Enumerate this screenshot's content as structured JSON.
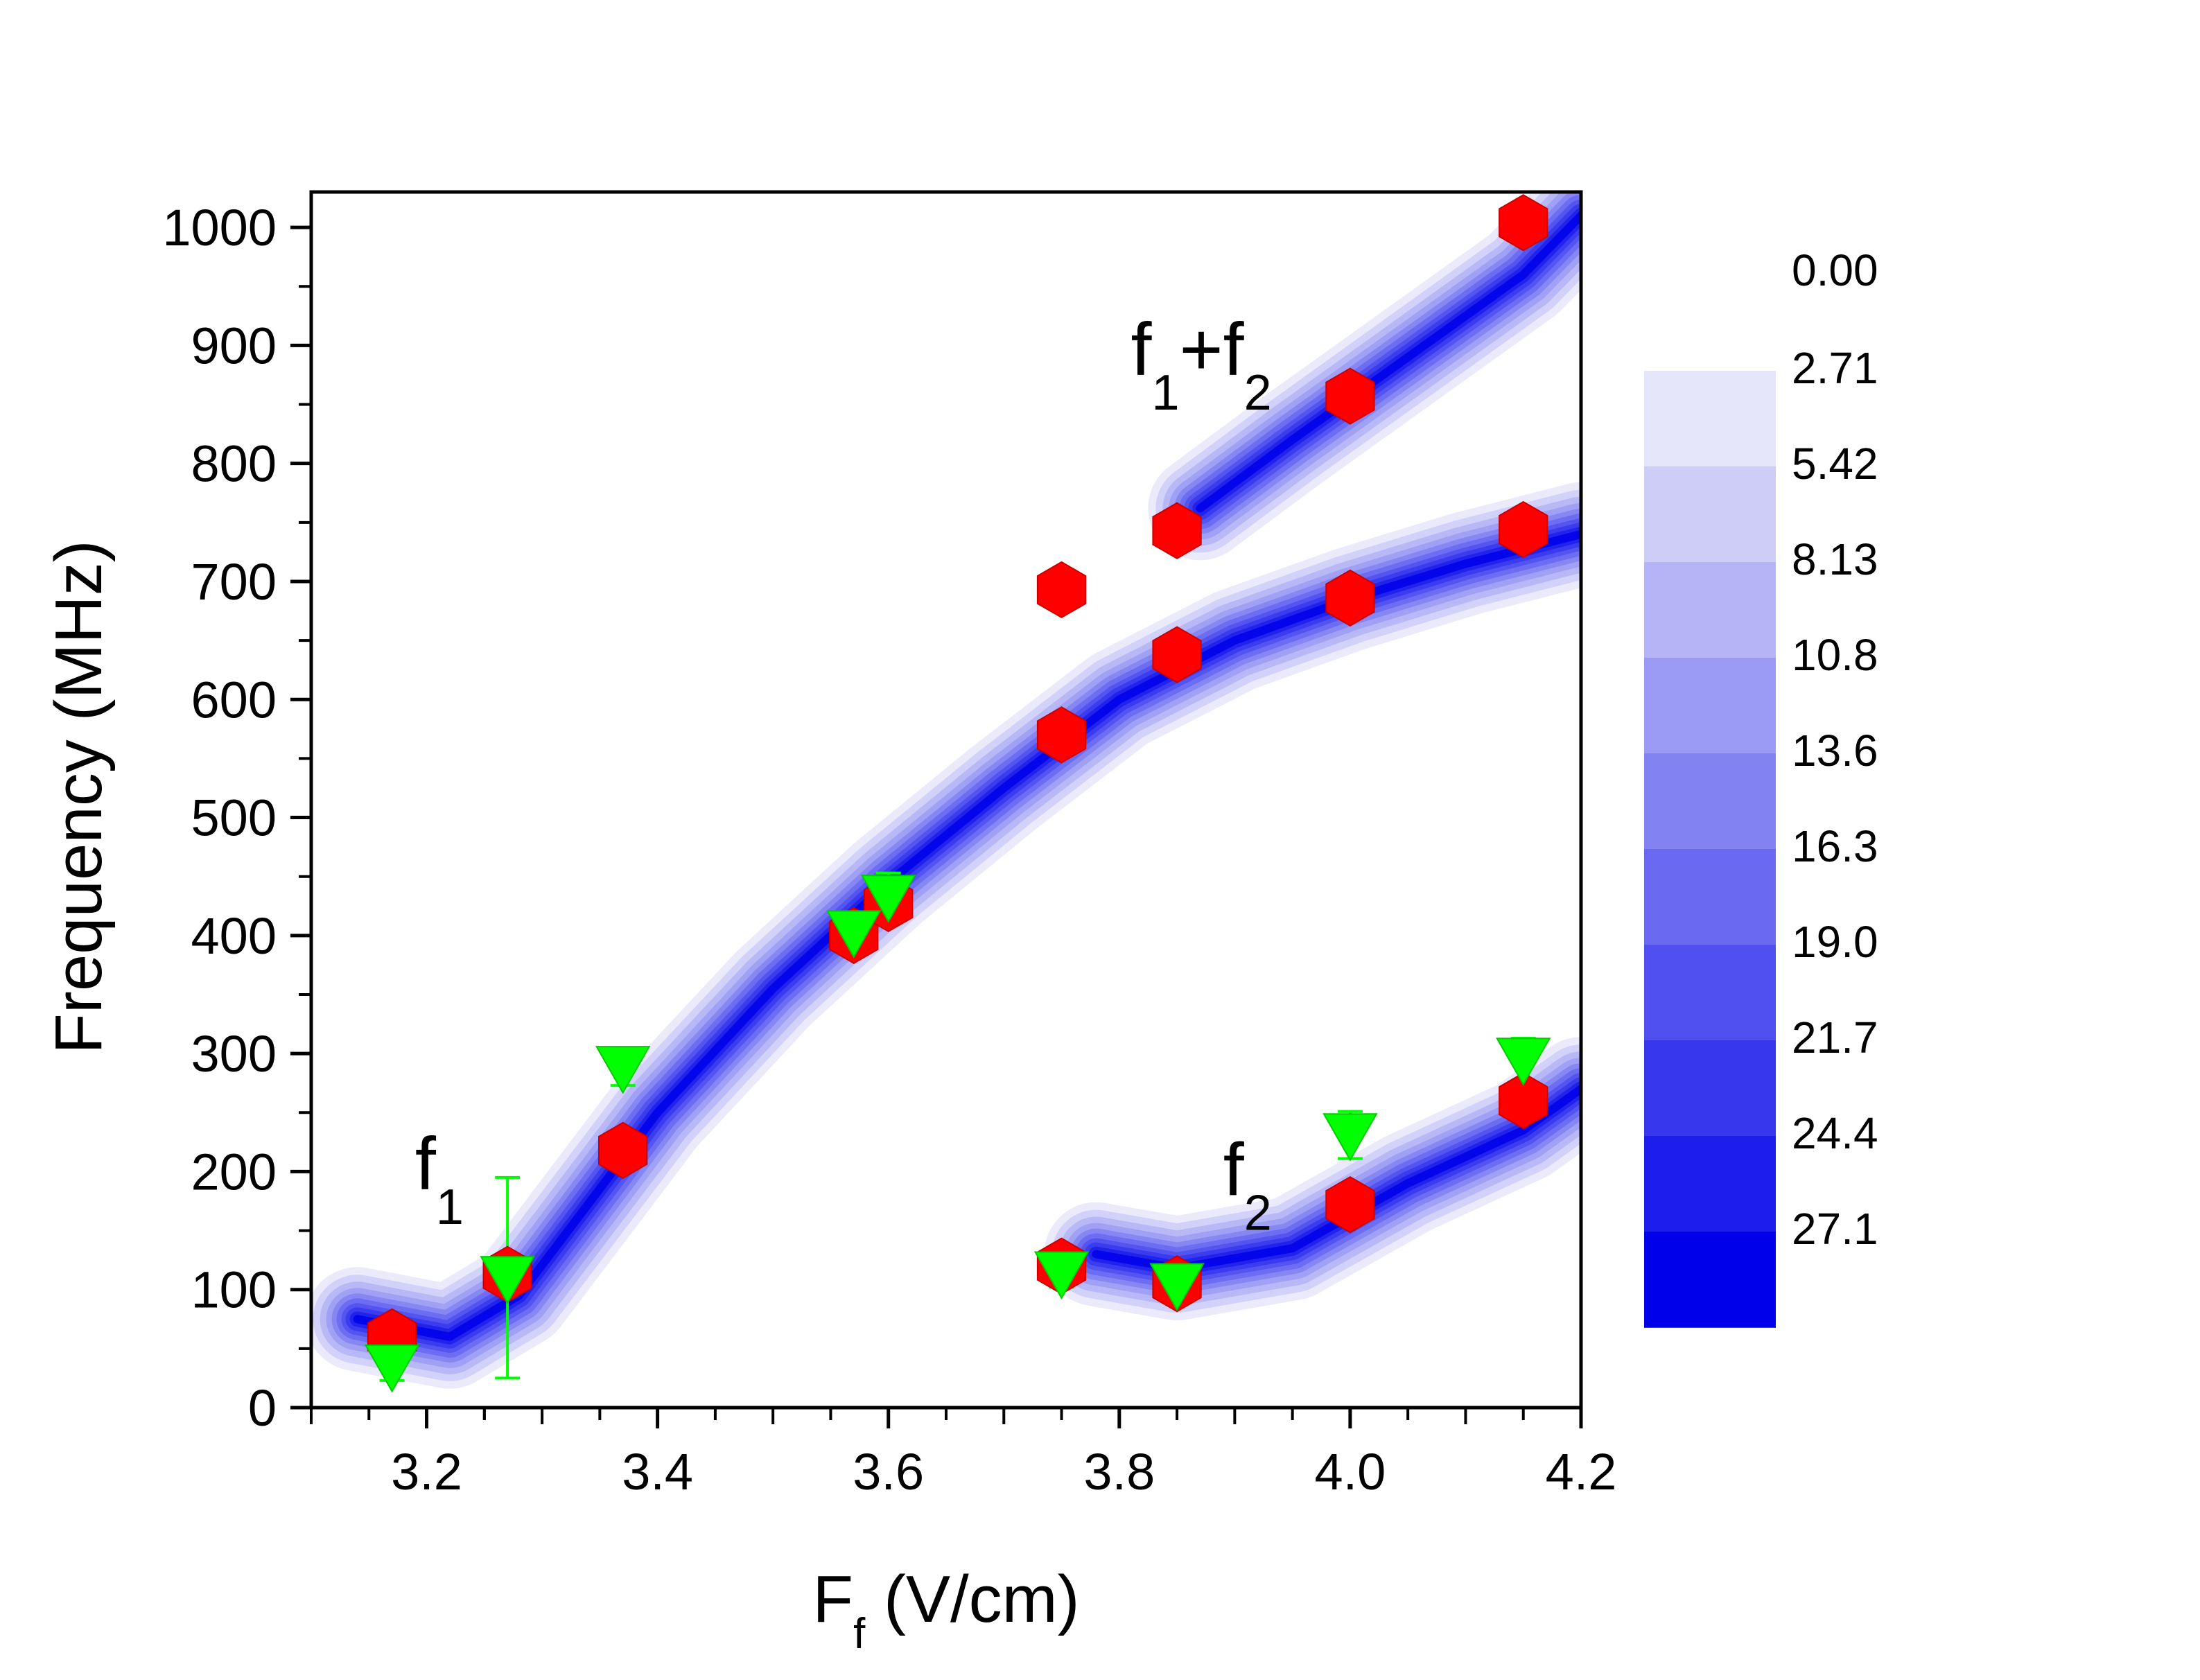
{
  "chart_data": {
    "type": "scatter",
    "title": "",
    "xlabel": "F",
    "xlabel_sub": "f",
    "xlabel_unit": " (V/cm)",
    "ylabel": "Frequency (MHz)",
    "xlim": [
      3.1,
      4.2
    ],
    "ylim": [
      0,
      1030
    ],
    "xticks": [
      3.2,
      3.4,
      3.6,
      3.8,
      4.0,
      4.2
    ],
    "xtick_labels": [
      "3.2",
      "3.4",
      "3.6",
      "3.8",
      "4.0",
      "4.2"
    ],
    "yticks": [
      0,
      100,
      200,
      300,
      400,
      500,
      600,
      700,
      800,
      900,
      1000
    ],
    "ytick_labels": [
      "0",
      "100",
      "200",
      "300",
      "400",
      "500",
      "600",
      "700",
      "800",
      "900",
      "1000"
    ],
    "grid": false,
    "series": [
      {
        "name": "red hexagons",
        "marker": "hexagon",
        "color": "#ff0000",
        "points": [
          {
            "x": 3.17,
            "y": 60
          },
          {
            "x": 3.27,
            "y": 113
          },
          {
            "x": 3.37,
            "y": 218
          },
          {
            "x": 3.57,
            "y": 400
          },
          {
            "x": 3.6,
            "y": 427
          },
          {
            "x": 3.75,
            "y": 570
          },
          {
            "x": 3.75,
            "y": 693
          },
          {
            "x": 3.75,
            "y": 120
          },
          {
            "x": 3.85,
            "y": 638
          },
          {
            "x": 3.85,
            "y": 743
          },
          {
            "x": 3.85,
            "y": 105
          },
          {
            "x": 4.0,
            "y": 686
          },
          {
            "x": 4.0,
            "y": 857
          },
          {
            "x": 4.0,
            "y": 172
          },
          {
            "x": 4.15,
            "y": 1004
          },
          {
            "x": 4.15,
            "y": 744
          },
          {
            "x": 4.15,
            "y": 260
          }
        ]
      },
      {
        "name": "green triangles",
        "marker": "triangle-down",
        "color": "#00ff00",
        "points": [
          {
            "x": 3.17,
            "y": 35,
            "err": 12
          },
          {
            "x": 3.27,
            "y": 110,
            "err": 85
          },
          {
            "x": 3.37,
            "y": 288,
            "err": 15
          },
          {
            "x": 3.57,
            "y": 403,
            "err": 12
          },
          {
            "x": 3.6,
            "y": 433,
            "err": 20
          },
          {
            "x": 3.75,
            "y": 114,
            "err": 12
          },
          {
            "x": 3.85,
            "y": 104,
            "err": 10
          },
          {
            "x": 4.0,
            "y": 231,
            "err": 20
          },
          {
            "x": 4.15,
            "y": 295,
            "err": 18
          }
        ]
      }
    ],
    "contour_ridges": [
      {
        "name": "f1",
        "points": [
          [
            3.14,
            75
          ],
          [
            3.22,
            60
          ],
          [
            3.28,
            95
          ],
          [
            3.4,
            250
          ],
          [
            3.5,
            355
          ],
          [
            3.6,
            445
          ],
          [
            3.7,
            525
          ],
          [
            3.8,
            600
          ],
          [
            3.9,
            650
          ],
          [
            4.0,
            685
          ],
          [
            4.1,
            715
          ],
          [
            4.2,
            740
          ]
        ]
      },
      {
        "name": "f2",
        "points": [
          [
            3.78,
            130
          ],
          [
            3.85,
            118
          ],
          [
            3.95,
            135
          ],
          [
            4.05,
            190
          ],
          [
            4.15,
            235
          ],
          [
            4.2,
            270
          ]
        ]
      },
      {
        "name": "f1+f2",
        "points": [
          [
            3.87,
            762
          ],
          [
            3.95,
            820
          ],
          [
            4.05,
            890
          ],
          [
            4.15,
            960
          ],
          [
            4.2,
            1010
          ]
        ]
      }
    ],
    "annotations": [
      {
        "text": "f",
        "sub": "1",
        "x": 3.19,
        "y": 185
      },
      {
        "text": "f",
        "sub": "2",
        "x": 3.89,
        "y": 180
      },
      {
        "text": "f",
        "sub": "1",
        "suffix": "+f",
        "sub2": "2",
        "x": 3.81,
        "y": 875
      }
    ],
    "colorbar": {
      "labels": [
        "0.00",
        "2.71",
        "5.42",
        "8.13",
        "10.8",
        "13.6",
        "16.3",
        "19.0",
        "21.7",
        "24.4",
        "27.1"
      ],
      "colors": [
        "#e6e6fa",
        "#cdcdf8",
        "#b4b4f6",
        "#9b9bf5",
        "#8282f3",
        "#6969f2",
        "#5050f0",
        "#3737ee",
        "#1e1eec",
        "#0000ea"
      ]
    }
  }
}
